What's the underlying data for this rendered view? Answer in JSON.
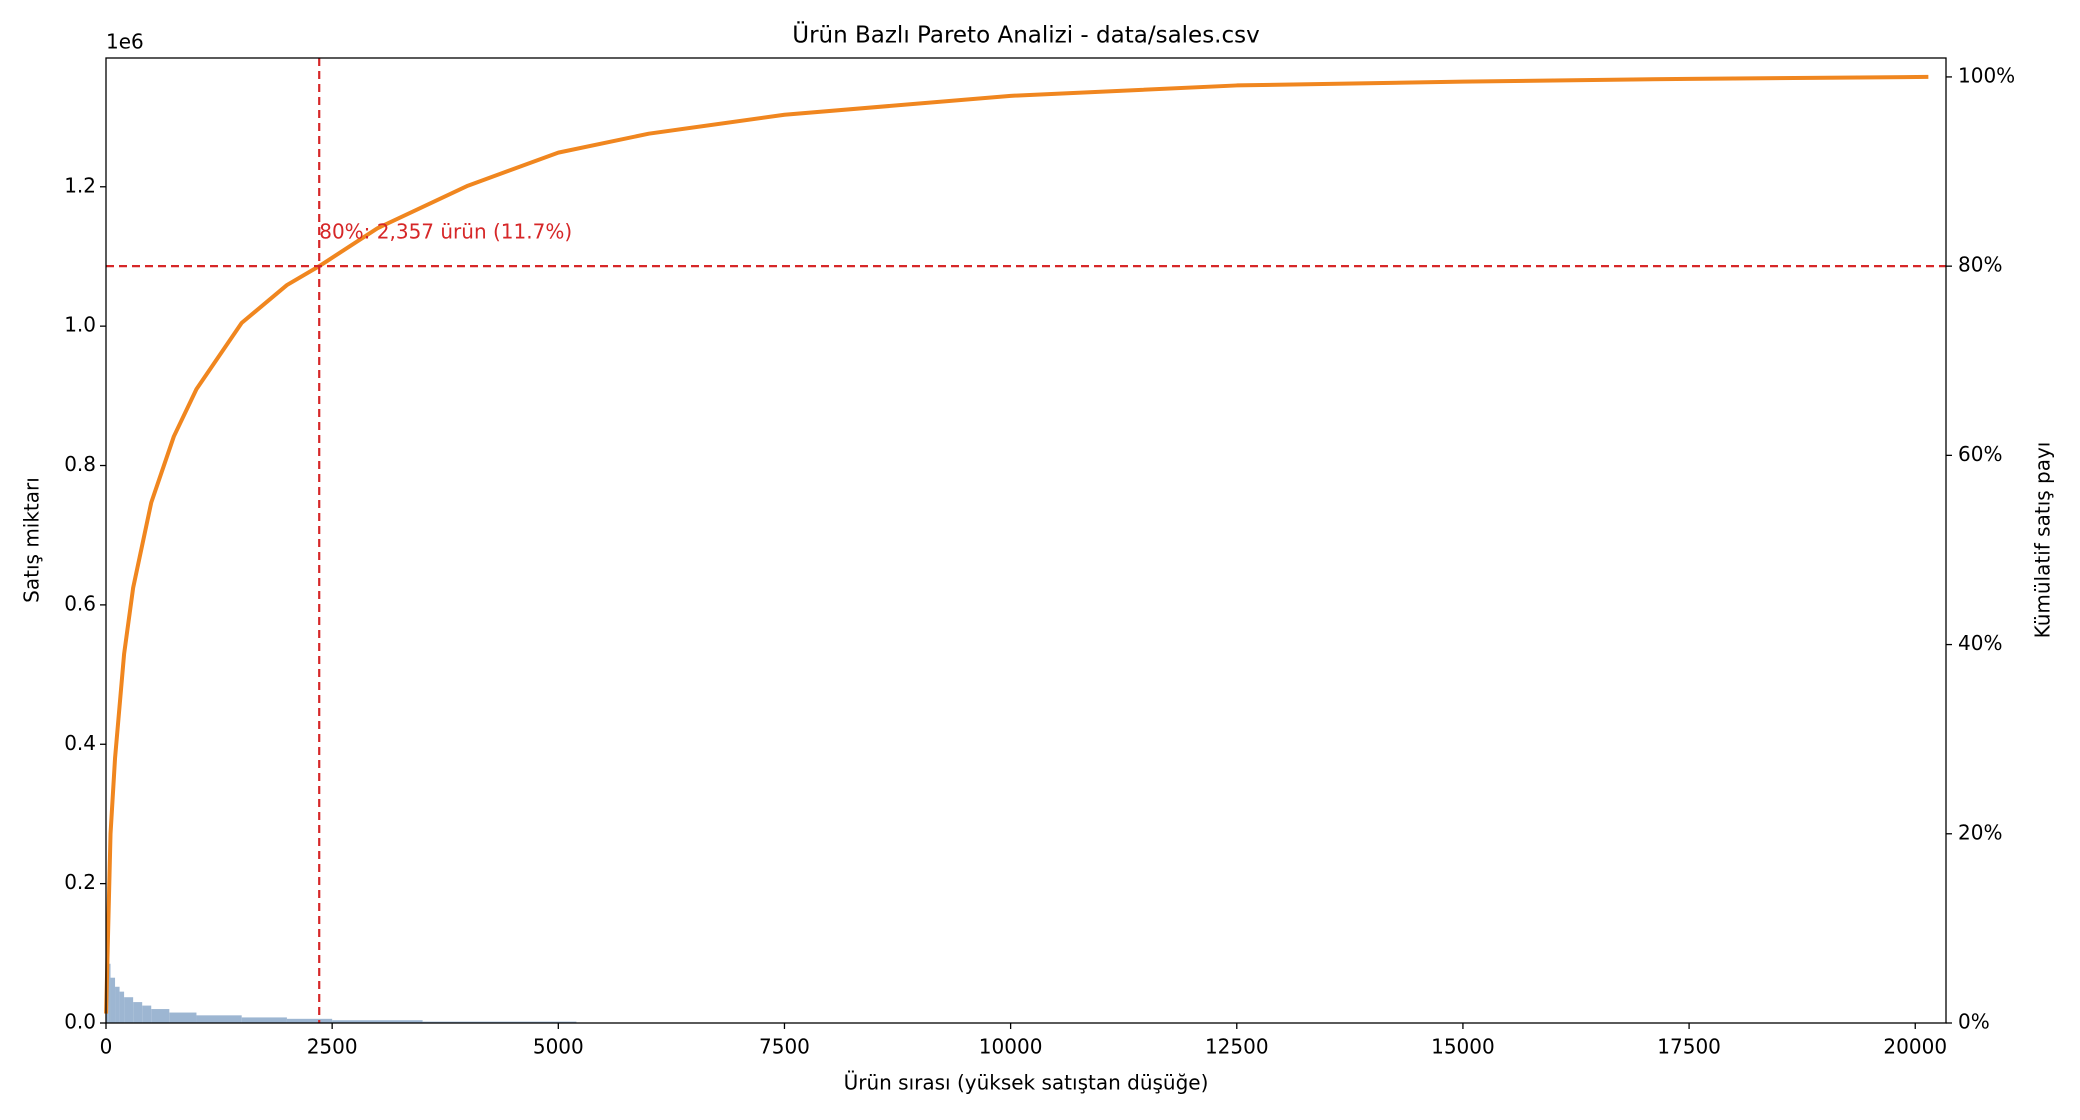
{
  "chart_data": {
    "type": "pareto",
    "title": "Ürün Bazlı Pareto Analizi - data/sales.csv",
    "x_label": "Ürün sırası (yüksek satıştan düşüğe)",
    "y_label": "Satış miktarı",
    "y2_label": "Kümülatif satış payı",
    "y_offset_label": "1e6",
    "annotation": "80%: 2,357 ürün (11.7%)",
    "threshold_x": 2357,
    "threshold_y2": 80,
    "threshold_color": "#d62728",
    "xlim": [
      0,
      20340
    ],
    "xticks": [
      0,
      2500,
      5000,
      7500,
      10000,
      12500,
      15000,
      17500,
      20000
    ],
    "ylim": [
      0,
      1384800
    ],
    "yticks": [
      {
        "value": 0,
        "label": "0.0"
      },
      {
        "value": 200000,
        "label": "0.2"
      },
      {
        "value": 400000,
        "label": "0.4"
      },
      {
        "value": 600000,
        "label": "0.6"
      },
      {
        "value": 800000,
        "label": "0.8"
      },
      {
        "value": 1000000,
        "label": "1.0"
      },
      {
        "value": 1200000,
        "label": "1.2"
      }
    ],
    "y2lim": [
      0,
      102
    ],
    "y2ticks": [
      {
        "value": 0,
        "label": "0%"
      },
      {
        "value": 20,
        "label": "20%"
      },
      {
        "value": 40,
        "label": "40%"
      },
      {
        "value": 60,
        "label": "60%"
      },
      {
        "value": 80,
        "label": "80%"
      },
      {
        "value": 100,
        "label": "100%"
      }
    ],
    "bars": {
      "color": "#9db6d2",
      "bins": [
        0,
        25,
        50,
        100,
        150,
        200,
        300,
        400,
        500,
        700,
        1000,
        1500,
        2000,
        2500,
        3500,
        5200,
        20145
      ],
      "values": [
        120000,
        85000,
        65000,
        52000,
        45000,
        37000,
        30000,
        25000,
        20000,
        15000,
        11000,
        8000,
        6000,
        4000,
        2000,
        300
      ]
    },
    "line": {
      "color": "#f0861f",
      "axis": "y2",
      "x": [
        1,
        50,
        100,
        200,
        300,
        500,
        750,
        1000,
        1500,
        2000,
        2357,
        3000,
        4000,
        5000,
        6000,
        7500,
        10000,
        12500,
        15000,
        17500,
        20145
      ],
      "values": [
        1,
        20,
        28,
        39,
        46,
        55,
        62,
        67,
        74,
        78,
        80,
        84,
        88.5,
        92,
        94,
        96,
        98,
        99.1,
        99.5,
        99.8,
        100
      ]
    }
  }
}
